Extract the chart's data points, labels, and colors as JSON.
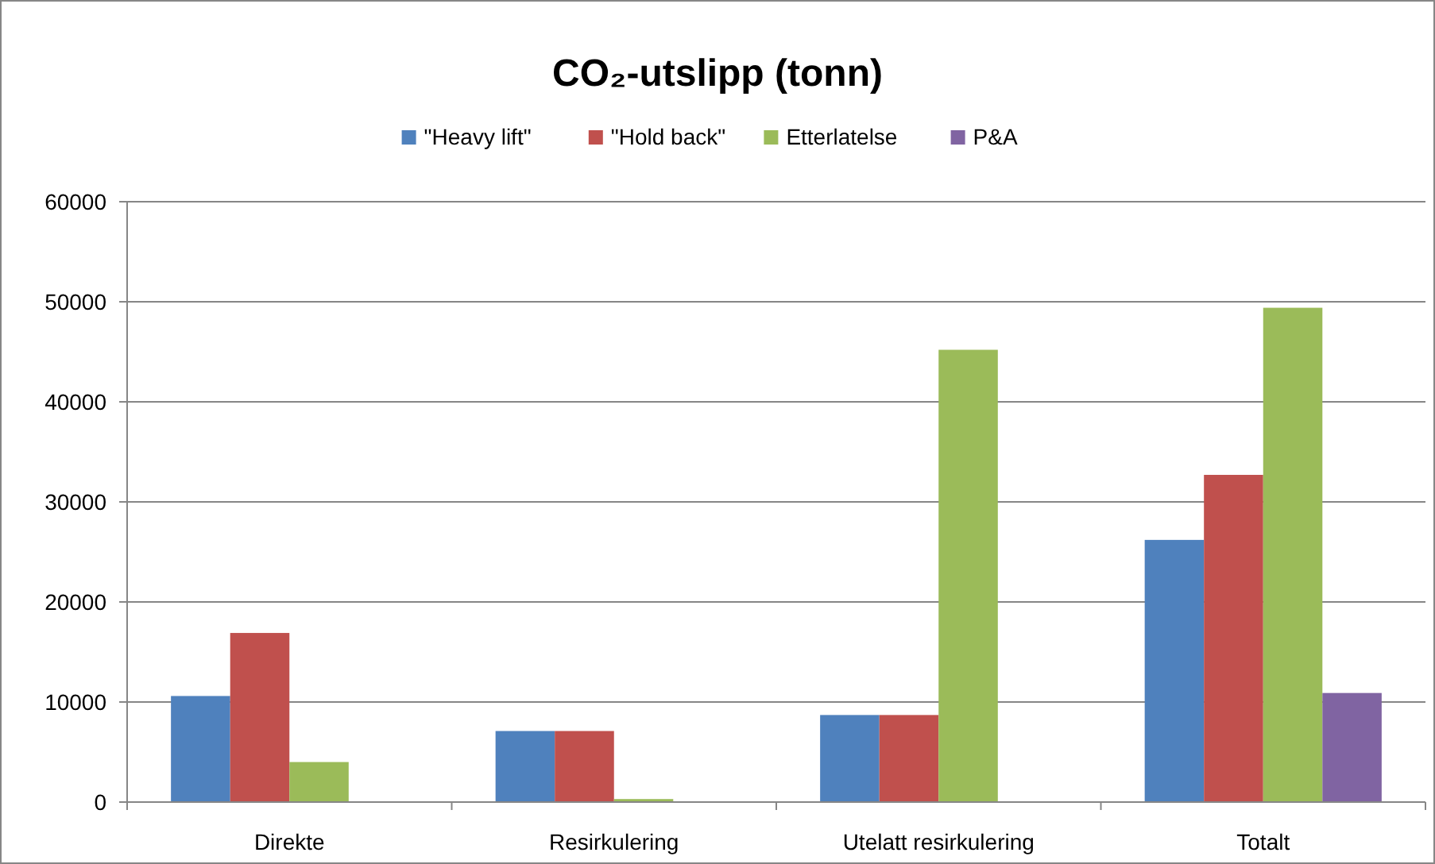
{
  "chart_data": {
    "type": "bar",
    "title": "CO₂-utslipp (tonn)",
    "categories": [
      "Direkte",
      "Resirkulering",
      "Utelatt resirkulering",
      "Totalt"
    ],
    "series": [
      {
        "name": "\"Heavy lift\"",
        "color": "#4f81bd",
        "values": [
          10600,
          7100,
          8700,
          26200
        ]
      },
      {
        "name": "\"Hold back\"",
        "color": "#c0504d",
        "values": [
          16900,
          7100,
          8700,
          32700
        ]
      },
      {
        "name": "Etterlatelse",
        "color": "#9bbb59",
        "values": [
          4000,
          300,
          45200,
          49400
        ]
      },
      {
        "name": "P&A",
        "color": "#8064a2",
        "values": [
          null,
          null,
          null,
          10900
        ]
      }
    ],
    "ylim": [
      0,
      60000
    ],
    "yticks": [
      0,
      10000,
      20000,
      30000,
      40000,
      50000,
      60000
    ],
    "grid": "y",
    "legend": "top"
  }
}
